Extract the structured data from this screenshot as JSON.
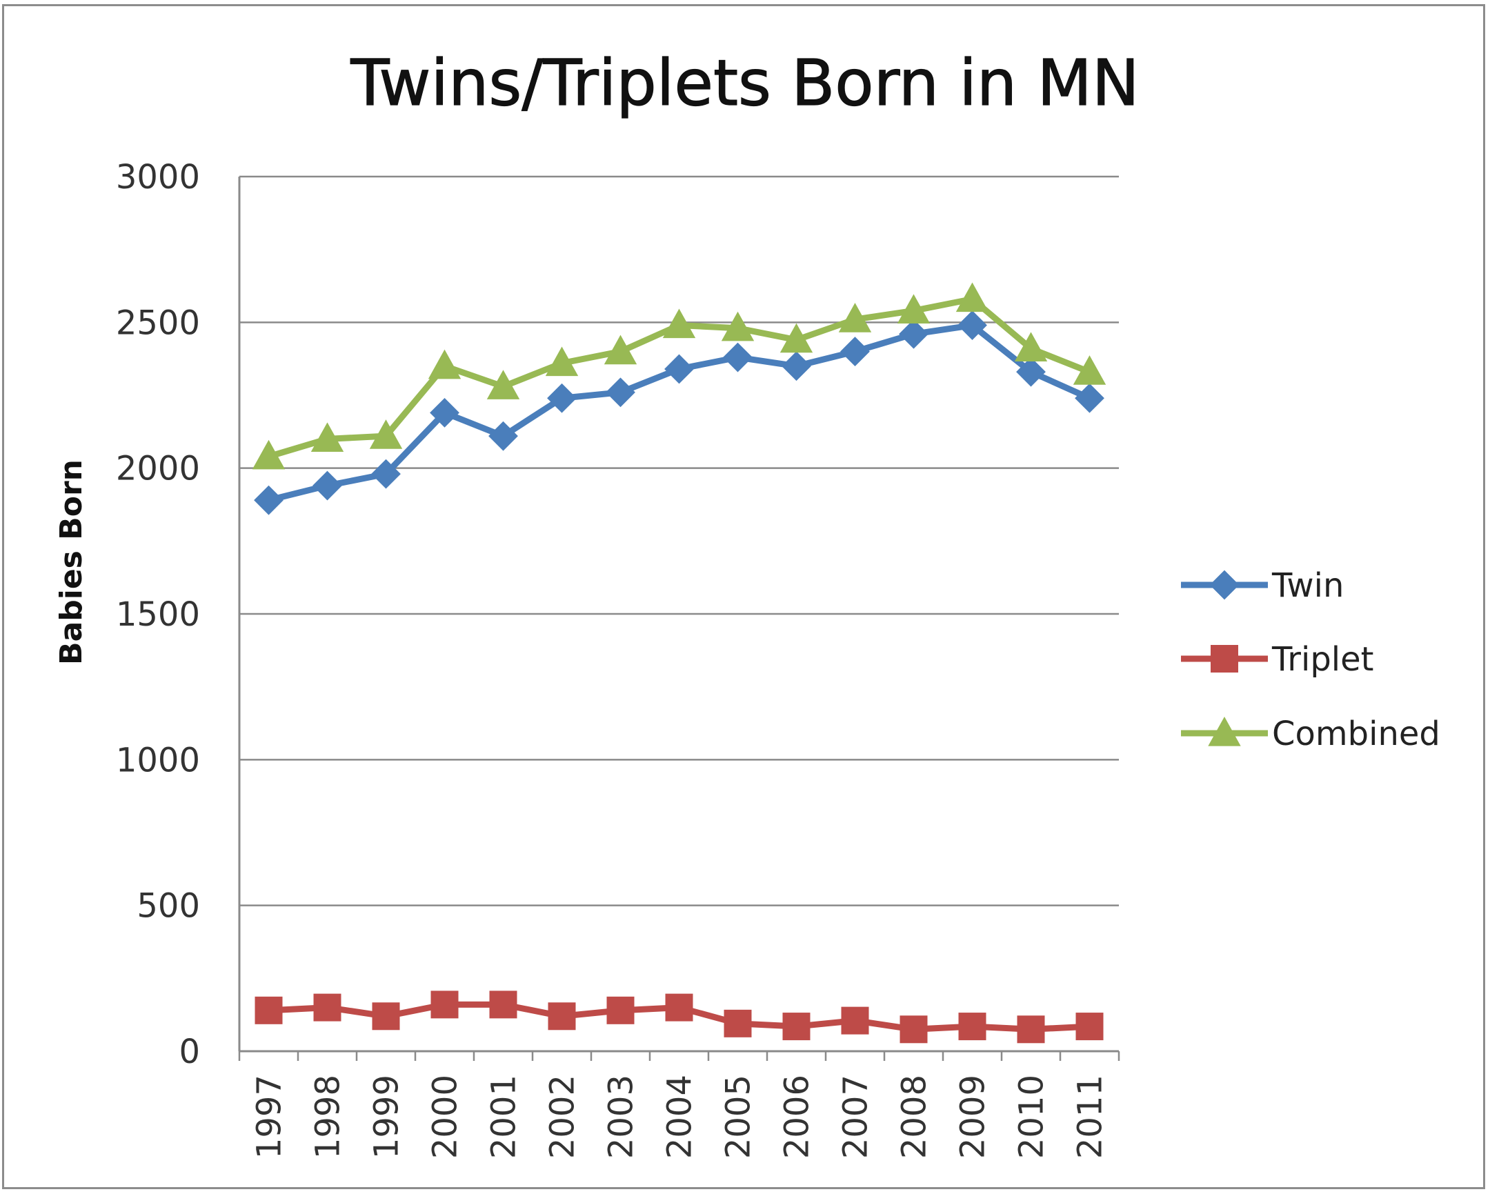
{
  "chart_data": {
    "type": "line",
    "title": "Twins/Triplets Born in MN",
    "xlabel": "",
    "ylabel": "Babies Born",
    "ylim": [
      0,
      3000
    ],
    "yticks": [
      0,
      500,
      1000,
      1500,
      2000,
      2500,
      3000
    ],
    "grid": true,
    "legend_position": "right",
    "categories": [
      "1997",
      "1998",
      "1999",
      "2000",
      "2001",
      "2002",
      "2003",
      "2004",
      "2005",
      "2006",
      "2007",
      "2008",
      "2009",
      "2010",
      "2011"
    ],
    "series": [
      {
        "name": "Twin",
        "color": "#4a7ebb",
        "marker": "diamond",
        "values": [
          1890,
          1940,
          1980,
          2190,
          2110,
          2240,
          2260,
          2340,
          2380,
          2350,
          2400,
          2460,
          2490,
          2330,
          2240
        ]
      },
      {
        "name": "Triplet",
        "color": "#be4b48",
        "marker": "square",
        "values": [
          140,
          150,
          120,
          160,
          160,
          120,
          140,
          150,
          95,
          85,
          105,
          75,
          85,
          75,
          85
        ]
      },
      {
        "name": "Combined",
        "color": "#98b954",
        "marker": "triangle",
        "values": [
          2040,
          2100,
          2110,
          2350,
          2280,
          2360,
          2400,
          2490,
          2480,
          2440,
          2510,
          2540,
          2580,
          2410,
          2330
        ]
      }
    ]
  }
}
